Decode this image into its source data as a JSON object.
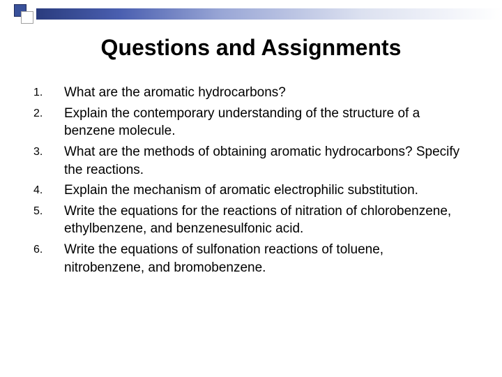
{
  "decor": {
    "square1_color": "#39519a",
    "square1_border": "#1f2a5a",
    "square2_color": "#ffffff",
    "square2_border": "#a0a0a0",
    "gradient_start": "#2a3c7e",
    "gradient_end": "#ffffff"
  },
  "title": "Questions and Assignments",
  "title_fontsize": 32,
  "body_fontsize": 19,
  "number_fontsize": 16,
  "text_color": "#000000",
  "background_color": "#ffffff",
  "items": [
    "What are the aromatic hydrocarbons?",
    "Explain the contemporary understanding of the structure of a benzene molecule.",
    "What are the methods of obtaining aromatic hydrocarbons? Specify the reactions.",
    "Explain the mechanism of aromatic electrophilic substitution.",
    "Write the equations for the reactions of nitration of chlorobenzene, ethylbenzene, and benzenesulfonic acid.",
    "Write the equations of sulfonation reactions of toluene, nitrobenzene, and bromobenzene."
  ]
}
